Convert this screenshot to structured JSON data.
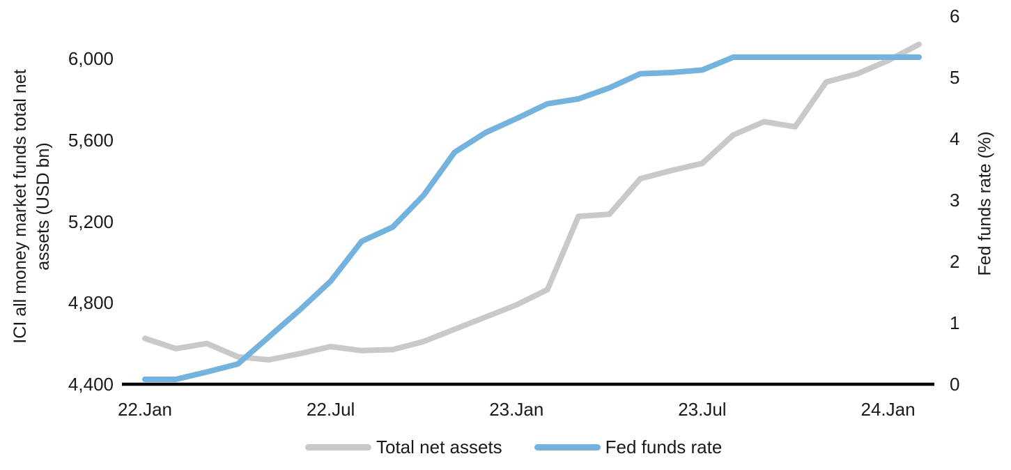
{
  "chart_data": {
    "type": "line",
    "title": "",
    "grid": false,
    "x_categories": [
      "Jan 22",
      "Feb 22",
      "Mar 22",
      "Apr 22",
      "May 22",
      "Jun 22",
      "Jul 22",
      "Aug 22",
      "Sep 22",
      "Oct 22",
      "Nov 22",
      "Dec 22",
      "Jan 23",
      "Feb 23",
      "Mar 23",
      "Apr 23",
      "May 23",
      "Jun 23",
      "Jul 23",
      "Aug 23",
      "Sep 23",
      "Oct 23",
      "Nov 23",
      "Dec 23",
      "Jan 24",
      "Feb 24"
    ],
    "x_tick_labels": [
      {
        "label": "22.Jan",
        "index": 0
      },
      {
        "label": "22.Jul",
        "index": 6
      },
      {
        "label": "23.Jan",
        "index": 12
      },
      {
        "label": "23.Jul",
        "index": 18
      },
      {
        "label": "24.Jan",
        "index": 24
      }
    ],
    "left_axis": {
      "title_line1": "ICI all money market funds total net",
      "title_line2": "assets (USD bn)",
      "range": [
        4400,
        6000
      ],
      "ticks": [
        {
          "label": "4,400",
          "value": 4400
        },
        {
          "label": "4,800",
          "value": 4800
        },
        {
          "label": "5,200",
          "value": 5200
        },
        {
          "label": "5,600",
          "value": 5600
        },
        {
          "label": "6,000",
          "value": 6000
        }
      ]
    },
    "right_axis": {
      "title": "Fed funds rate (%)",
      "range": [
        0,
        6
      ],
      "ticks": [
        {
          "label": "0",
          "value": 0
        },
        {
          "label": "1",
          "value": 1
        },
        {
          "label": "2",
          "value": 2
        },
        {
          "label": "3",
          "value": 3
        },
        {
          "label": "4",
          "value": 4
        },
        {
          "label": "5",
          "value": 5
        },
        {
          "label": "6",
          "value": 6
        }
      ]
    },
    "series": [
      {
        "name": "Total net assets",
        "axis": "left",
        "color": "#C9C9C9",
        "values": [
          4625,
          4575,
          4600,
          4535,
          4520,
          4550,
          4585,
          4565,
          4570,
          4610,
          4670,
          4730,
          4790,
          4865,
          5225,
          5235,
          5410,
          5450,
          5485,
          5625,
          5690,
          5665,
          5885,
          5925,
          5990,
          6070
        ]
      },
      {
        "name": "Fed funds rate",
        "axis": "right",
        "color": "#74B3DD",
        "values": [
          0.08,
          0.08,
          0.2,
          0.33,
          0.77,
          1.21,
          1.68,
          2.33,
          2.56,
          3.08,
          3.78,
          4.1,
          4.33,
          4.57,
          4.65,
          4.83,
          5.06,
          5.08,
          5.12,
          5.33,
          5.33,
          5.33,
          5.33,
          5.33,
          5.33,
          5.33
        ]
      }
    ],
    "legend": {
      "position": "bottom"
    }
  },
  "colors": {
    "background": "#FFFFFF",
    "axis_line": "#000000",
    "text": "#1A1A1A",
    "assets_line": "#C9C9C9",
    "rate_line": "#74B3DD"
  }
}
